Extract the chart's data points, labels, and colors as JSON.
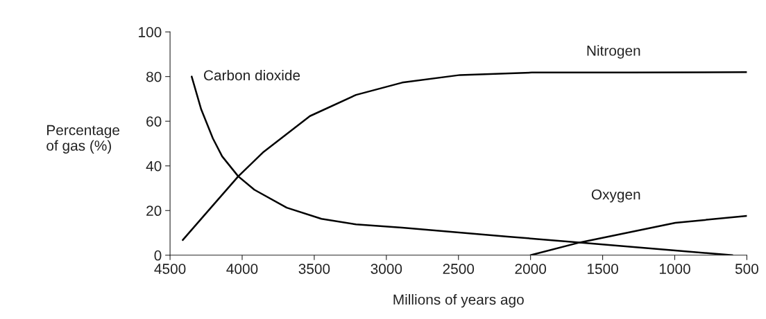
{
  "chart_data": {
    "type": "line",
    "xlabel": "Millions of years ago",
    "ylabel": "Percentage\nof gas (%)",
    "xlim": [
      4500,
      500
    ],
    "xticks": [
      4500,
      4000,
      3500,
      3000,
      2500,
      2000,
      1500,
      1000,
      500
    ],
    "ylim": [
      0,
      100
    ],
    "yticks": [
      0,
      20,
      40,
      60,
      80,
      100
    ],
    "grid": false,
    "legend": false,
    "marker": "none",
    "line_style": "solid",
    "series": [
      {
        "name": "Carbon dioxide",
        "color": "#000000",
        "x": [
          4350,
          4284,
          4203,
          4139,
          4027,
          3915,
          3691,
          3450,
          3210,
          2890,
          2157,
          1659,
          996,
          600
        ],
        "values": [
          80,
          65.3,
          52.3,
          44.3,
          35.3,
          29.3,
          21.3,
          16.3,
          13.8,
          12.3,
          8.3,
          5.7,
          2.1,
          0
        ]
      },
      {
        "name": "Nitrogen",
        "color": "#000000",
        "x": [
          4412,
          4203,
          4027,
          3851,
          3530,
          3210,
          2890,
          2489,
          1991,
          1328,
          500
        ],
        "values": [
          6.8,
          22.3,
          35.3,
          46.3,
          62.3,
          71.8,
          77.3,
          80.7,
          81.8,
          81.8,
          82
        ]
      },
      {
        "name": "Oxygen",
        "color": "#000000",
        "x": [
          2000,
          1659,
          996,
          500
        ],
        "values": [
          0,
          5.7,
          14.5,
          17.6
        ]
      }
    ]
  }
}
